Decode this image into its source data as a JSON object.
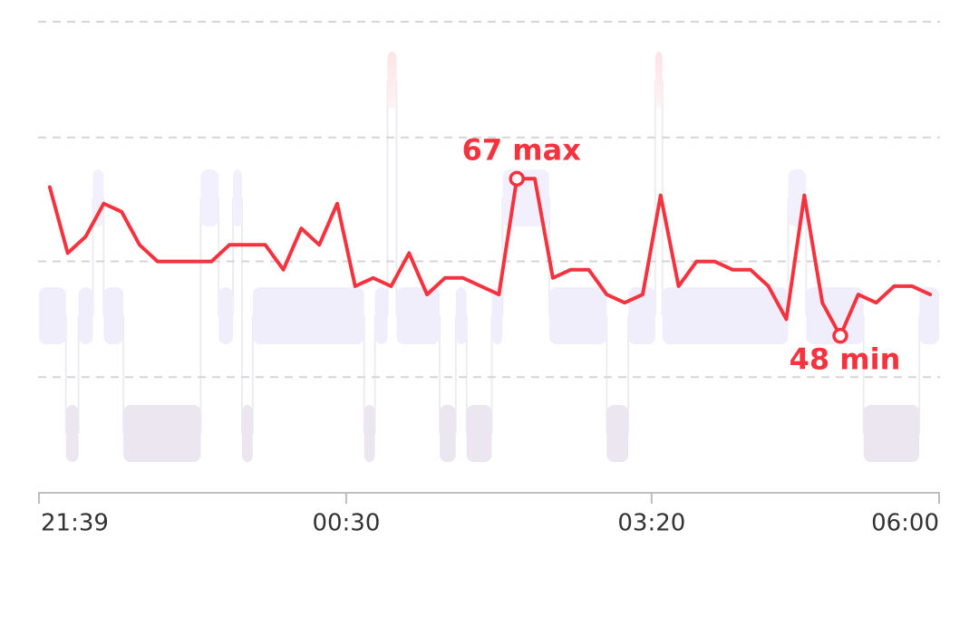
{
  "chart_data": {
    "type": "line",
    "x": [
      1305,
      1315,
      1325,
      1335,
      1345,
      1355,
      1365,
      1375,
      1385,
      1395,
      1405,
      1415,
      1425,
      1435,
      1445,
      1455,
      1465,
      1475,
      1485,
      1495,
      1505,
      1515,
      1525,
      1535,
      1545,
      1555,
      1565,
      1575,
      1585,
      1595,
      1605,
      1615,
      1625,
      1635,
      1645,
      1655,
      1665,
      1675,
      1685,
      1695,
      1705,
      1715,
      1725,
      1735,
      1745,
      1755,
      1765,
      1775,
      1785,
      1795
    ],
    "series": [
      {
        "color": "#f4333f",
        "values": [
          66,
          58,
          60,
          64,
          63,
          59,
          57,
          57,
          57,
          57,
          59,
          59,
          59,
          56,
          61,
          59,
          64,
          54,
          55,
          54,
          58,
          53,
          55,
          55,
          54,
          53,
          67,
          67,
          55,
          56,
          56,
          53,
          52,
          53,
          65,
          54,
          57,
          57,
          56,
          56,
          54,
          50,
          65,
          52,
          48,
          53,
          52,
          54,
          54,
          53
        ]
      }
    ],
    "max_label": "67 max",
    "min_label": "48 min",
    "stages": {
      "x": [
        1299,
        1314,
        1321,
        1329,
        1335,
        1346,
        1389,
        1399,
        1407,
        1412,
        1418,
        1480,
        1486,
        1493,
        1498,
        1522,
        1531,
        1537,
        1551,
        1557,
        1583,
        1615,
        1627,
        1642,
        1646,
        1716,
        1726,
        1758,
        1789
      ],
      "values": [
        2,
        1,
        2,
        3,
        2,
        1,
        3,
        2,
        3,
        1,
        2,
        1,
        2,
        4,
        2,
        1,
        2,
        1,
        2,
        3,
        2,
        1,
        2,
        4,
        2,
        3,
        2,
        1,
        2
      ]
    },
    "xlim": [
      1299,
      1800
    ],
    "xticks": [
      {
        "value": 1299,
        "label": "21:39"
      },
      {
        "value": 1470,
        "label": "00:30"
      },
      {
        "value": 1640,
        "label": "03:20"
      },
      {
        "value": 1800,
        "label": "06:00"
      }
    ],
    "ylim": [
      29,
      86
    ],
    "yticks": [
      43,
      57,
      72,
      86
    ],
    "grid": true
  }
}
